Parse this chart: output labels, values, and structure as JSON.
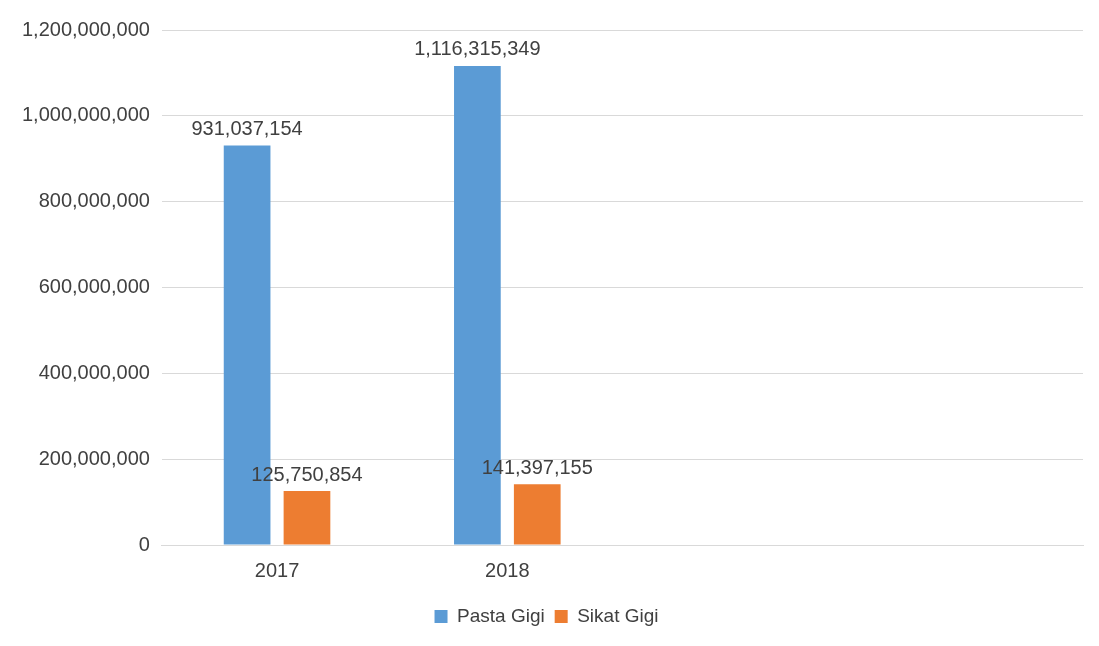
{
  "chart_data": {
    "type": "bar",
    "categories": [
      "2017",
      "2018",
      null,
      null
    ],
    "series": [
      {
        "name": "Pasta Gigi",
        "color": "#5b9bd5",
        "values": [
          931037154,
          1116315349,
          null,
          null
        ],
        "value_labels": [
          "931,037,154",
          "1,116,315,349",
          null,
          null
        ]
      },
      {
        "name": "Sikat Gigi",
        "color": "#ed7d31",
        "values": [
          125750854,
          141397155,
          null,
          null
        ],
        "value_labels": [
          "125,750,854",
          "141,397,155",
          null,
          null
        ]
      }
    ],
    "ylim": [
      0,
      1200000000
    ],
    "yticks": [
      {
        "value": 0,
        "label": "0"
      },
      {
        "value": 200000000,
        "label": "200,000,000"
      },
      {
        "value": 400000000,
        "label": "400,000,000"
      },
      {
        "value": 600000000,
        "label": "600,000,000"
      },
      {
        "value": 800000000,
        "label": "800,000,000"
      },
      {
        "value": 1000000000,
        "label": "1,000,000,000"
      },
      {
        "value": 1200000000,
        "label": "1,200,000,000"
      }
    ],
    "grid": "y",
    "legend": "bottom"
  }
}
